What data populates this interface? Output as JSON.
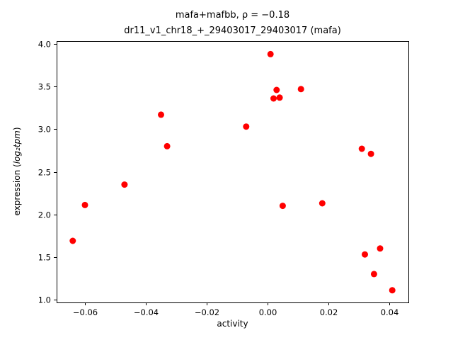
{
  "chart_data": {
    "type": "scatter",
    "title": "mafa+mafbb, ρ = −0.18",
    "subtitle": "dr11_v1_chr18_+_29403017_29403017 (mafa)",
    "xlabel": "activity",
    "ylabel_prefix": "expression (",
    "ylabel_math": "log₂tpm",
    "ylabel_suffix": ")",
    "correlation": -0.18,
    "marker_color": "#ff0000",
    "marker_radius": 4.5,
    "grid": false,
    "legend": "none",
    "xlim": [
      -0.0693,
      0.0463
    ],
    "ylim": [
      0.967,
      4.033
    ],
    "xticks": [
      -0.06,
      -0.04,
      -0.02,
      0.0,
      0.02,
      0.04
    ],
    "xtick_labels": [
      "−0.06",
      "−0.04",
      "−0.02",
      "0.00",
      "0.02",
      "0.04"
    ],
    "yticks": [
      1.0,
      1.5,
      2.0,
      2.5,
      3.0,
      3.5,
      4.0
    ],
    "ytick_labels": [
      "1.0",
      "1.5",
      "2.0",
      "2.5",
      "3.0",
      "3.5",
      "4.0"
    ],
    "points": [
      [
        -0.064,
        1.69
      ],
      [
        -0.06,
        2.11
      ],
      [
        -0.047,
        2.35
      ],
      [
        -0.035,
        3.17
      ],
      [
        -0.033,
        2.8
      ],
      [
        -0.007,
        3.03
      ],
      [
        0.001,
        3.88
      ],
      [
        0.002,
        3.36
      ],
      [
        0.003,
        3.46
      ],
      [
        0.004,
        3.37
      ],
      [
        0.005,
        2.1
      ],
      [
        0.011,
        3.47
      ],
      [
        0.018,
        2.13
      ],
      [
        0.031,
        2.77
      ],
      [
        0.032,
        1.53
      ],
      [
        0.034,
        2.71
      ],
      [
        0.035,
        1.3
      ],
      [
        0.037,
        1.6
      ],
      [
        0.041,
        1.11
      ]
    ]
  }
}
